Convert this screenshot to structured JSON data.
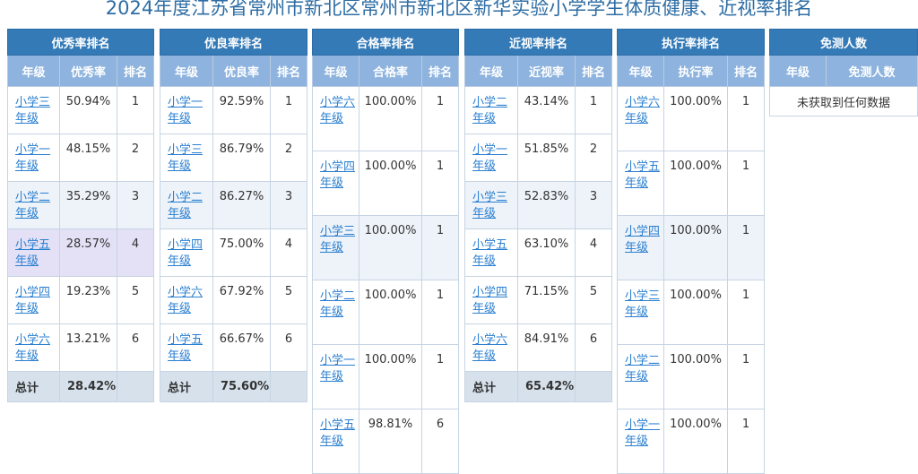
{
  "title": "2024年度江苏省常州市新北区常州市新北区新华实验小学学生体质健康、近视率排名",
  "panels": {
    "excellent": {
      "caption": "优秀率排名",
      "headers": [
        "年级",
        "优秀率",
        "排名"
      ],
      "rows": [
        {
          "grade": "小学三年级",
          "value": "50.94%",
          "rank": "1"
        },
        {
          "grade": "小学一年级",
          "value": "48.15%",
          "rank": "2"
        },
        {
          "grade": "小学二年级",
          "value": "35.29%",
          "rank": "3"
        },
        {
          "grade": "小学五年级",
          "value": "28.57%",
          "rank": "4"
        },
        {
          "grade": "小学四年级",
          "value": "19.23%",
          "rank": "5"
        },
        {
          "grade": "小学六年级",
          "value": "13.21%",
          "rank": "6"
        }
      ],
      "total_label": "总计",
      "total_value": "28.42%"
    },
    "good": {
      "caption": "优良率排名",
      "headers": [
        "年级",
        "优良率",
        "排名"
      ],
      "rows": [
        {
          "grade": "小学一年级",
          "value": "92.59%",
          "rank": "1"
        },
        {
          "grade": "小学三年级",
          "value": "86.79%",
          "rank": "2"
        },
        {
          "grade": "小学二年级",
          "value": "86.27%",
          "rank": "3"
        },
        {
          "grade": "小学四年级",
          "value": "75.00%",
          "rank": "4"
        },
        {
          "grade": "小学六年级",
          "value": "67.92%",
          "rank": "5"
        },
        {
          "grade": "小学五年级",
          "value": "66.67%",
          "rank": "6"
        }
      ],
      "total_label": "总计",
      "total_value": "75.60%"
    },
    "pass": {
      "caption": "合格率排名",
      "headers": [
        "年级",
        "合格率",
        "排名"
      ],
      "rows": [
        {
          "grade": "小学六年级",
          "value": "100.00%",
          "rank": "1"
        },
        {
          "grade": "小学四年级",
          "value": "100.00%",
          "rank": "1"
        },
        {
          "grade": "小学三年级",
          "value": "100.00%",
          "rank": "1"
        },
        {
          "grade": "小学二年级",
          "value": "100.00%",
          "rank": "1"
        },
        {
          "grade": "小学一年级",
          "value": "100.00%",
          "rank": "1"
        },
        {
          "grade": "小学五年级",
          "value": "98.81%",
          "rank": "6"
        }
      ]
    },
    "myopia": {
      "caption": "近视率排名",
      "headers": [
        "年级",
        "近视率",
        "排名"
      ],
      "rows": [
        {
          "grade": "小学二年级",
          "value": "43.14%",
          "rank": "1"
        },
        {
          "grade": "小学一年级",
          "value": "51.85%",
          "rank": "2"
        },
        {
          "grade": "小学三年级",
          "value": "52.83%",
          "rank": "3"
        },
        {
          "grade": "小学五年级",
          "value": "63.10%",
          "rank": "4"
        },
        {
          "grade": "小学四年级",
          "value": "71.15%",
          "rank": "5"
        },
        {
          "grade": "小学六年级",
          "value": "84.91%",
          "rank": "6"
        }
      ],
      "total_label": "总计",
      "total_value": "65.42%"
    },
    "execution": {
      "caption": "执行率排名",
      "headers": [
        "年级",
        "执行率",
        "排名"
      ],
      "rows": [
        {
          "grade": "小学六年级",
          "value": "100.00%",
          "rank": "1"
        },
        {
          "grade": "小学五年级",
          "value": "100.00%",
          "rank": "1"
        },
        {
          "grade": "小学四年级",
          "value": "100.00%",
          "rank": "1"
        },
        {
          "grade": "小学三年级",
          "value": "100.00%",
          "rank": "1"
        },
        {
          "grade": "小学二年级",
          "value": "100.00%",
          "rank": "1"
        },
        {
          "grade": "小学一年级",
          "value": "100.00%",
          "rank": "1"
        }
      ]
    },
    "exempt": {
      "caption": "免测人数",
      "headers": [
        "年级",
        "免测人数"
      ],
      "empty_text": "未获取到任何数据"
    }
  }
}
